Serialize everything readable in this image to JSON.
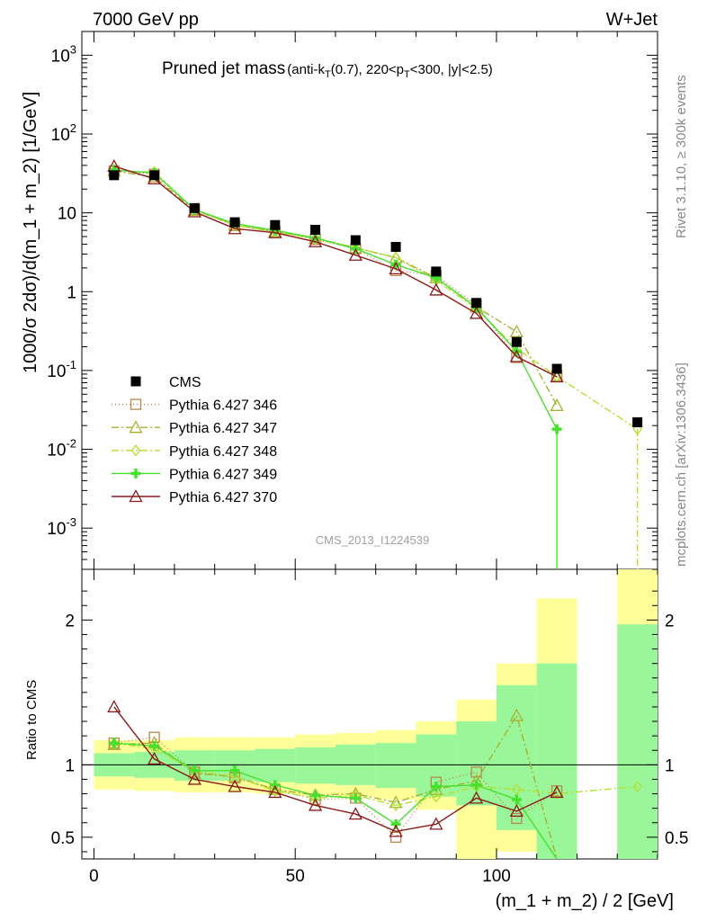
{
  "header": {
    "left": "7000 GeV pp",
    "right": "W+Jet"
  },
  "title": {
    "main": "Pruned jet mass",
    "sub": "(anti-k_T(0.7), 220<p_T<300, |y|<2.5)"
  },
  "side_labels": {
    "rivet": "Rivet 3.1.10, ≥ 300k events",
    "mcplots": "mcplots.cern.ch [arXiv:1306.3436]"
  },
  "watermark": "CMS_2013_I1224539",
  "chart_data": [
    {
      "type": "scatter",
      "panel": "main",
      "ylabel": "1000/σ 2dσ)/d(m_1 + m_2) [1/GeV]",
      "yscale": "log",
      "ylim": [
        0.0003,
        2000
      ],
      "xlim": [
        -3,
        140
      ],
      "yticks": [
        {
          "v": 0.001,
          "base": "10",
          "exp": "-3"
        },
        {
          "v": 0.01,
          "base": "10",
          "exp": "-2"
        },
        {
          "v": 0.1,
          "base": "10",
          "exp": "-1"
        },
        {
          "v": 1,
          "base": "1",
          "exp": ""
        },
        {
          "v": 10,
          "base": "10",
          "exp": ""
        },
        {
          "v": 100,
          "base": "10",
          "exp": "2"
        },
        {
          "v": 1000,
          "base": "10",
          "exp": "3"
        }
      ],
      "legend_position": "left-middle",
      "series": [
        {
          "name": "CMS",
          "color": "#000000",
          "marker": "square-filled",
          "dash": "none",
          "x": [
            5,
            15,
            25,
            35,
            45,
            55,
            65,
            75,
            85,
            95,
            105,
            115,
            135
          ],
          "y": [
            30,
            30,
            11.5,
            7.6,
            7.0,
            6.1,
            4.5,
            3.7,
            1.8,
            0.72,
            0.23,
            0.105,
            0.022
          ]
        },
        {
          "name": "Pythia 6.427 346",
          "color": "#b8874e",
          "marker": "square-open",
          "dash": "1,3",
          "x": [
            5,
            15,
            25,
            35,
            45,
            55,
            65,
            75,
            85,
            95,
            105,
            115
          ],
          "y": [
            34,
            31,
            11,
            6.9,
            5.8,
            4.6,
            3.5,
            1.85,
            1.6,
            0.68,
            0.146,
            0.086
          ]
        },
        {
          "name": "Pythia 6.427 347",
          "color": "#a8b032",
          "marker": "triangle-open",
          "dash": "8,3,2,3",
          "x": [
            5,
            15,
            25,
            35,
            45,
            55,
            65,
            75,
            85,
            95,
            105,
            115
          ],
          "y": [
            34,
            28.5,
            10.8,
            7.0,
            5.8,
            4.8,
            3.6,
            2.7,
            1.5,
            0.64,
            0.31,
            0.036
          ]
        },
        {
          "name": "Pythia 6.427 348",
          "color": "#b4e032",
          "marker": "diamond-open",
          "dash": "8,3,2,3",
          "x": [
            5,
            15,
            25,
            35,
            45,
            55,
            65,
            75,
            85,
            95,
            105,
            115,
            135
          ],
          "y": [
            34,
            33,
            11,
            7.0,
            5.7,
            4.7,
            3.6,
            2.7,
            1.4,
            0.61,
            0.19,
            0.084,
            0.018
          ]
        },
        {
          "name": "Pythia 6.427 349",
          "color": "#47e02e",
          "marker": "cross",
          "dash": "none",
          "x": [
            5,
            15,
            25,
            35,
            45,
            55,
            65,
            75,
            85,
            95,
            105,
            115
          ],
          "y": [
            35,
            32,
            11,
            7.3,
            6.0,
            4.8,
            3.5,
            2.2,
            1.5,
            0.63,
            0.175,
            0.018
          ]
        },
        {
          "name": "Pythia 6.427 370",
          "color": "#8b1a1a",
          "marker": "triangle-open",
          "dash": "none",
          "x": [
            5,
            15,
            25,
            35,
            45,
            55,
            65,
            75,
            85,
            95,
            105,
            115
          ],
          "y": [
            39,
            27,
            10.3,
            6.3,
            5.6,
            4.3,
            2.9,
            1.95,
            1.05,
            0.53,
            0.15,
            0.083
          ]
        }
      ]
    },
    {
      "type": "line",
      "panel": "ratio",
      "ylabel": "Ratio to CMS",
      "xlabel": "(m_1 + m_2) / 2 [GeV]",
      "ylim": [
        0.35,
        2.35
      ],
      "xlim": [
        -3,
        140
      ],
      "xticks": [
        0,
        50,
        100
      ],
      "yticks": [
        0.5,
        1,
        2
      ],
      "bands": {
        "edges": [
          0,
          10,
          20,
          30,
          40,
          50,
          60,
          70,
          80,
          90,
          100,
          110,
          120,
          130,
          140
        ],
        "yellow": [
          [
            0.83,
            1.17
          ],
          [
            0.82,
            1.17
          ],
          [
            0.81,
            1.19
          ],
          [
            0.81,
            1.19
          ],
          [
            0.8,
            1.19
          ],
          [
            0.79,
            1.21
          ],
          [
            0.78,
            1.22
          ],
          [
            0.76,
            1.24
          ],
          [
            0.69,
            1.3
          ],
          [
            0.35,
            1.45
          ],
          [
            0.4,
            1.7
          ],
          [
            0.35,
            2.15
          ],
          [
            null,
            null
          ],
          [
            0.35,
            2.35
          ]
        ],
        "green": [
          [
            0.92,
            1.08
          ],
          [
            0.91,
            1.09
          ],
          [
            0.89,
            1.1
          ],
          [
            0.89,
            1.1
          ],
          [
            0.88,
            1.11
          ],
          [
            0.87,
            1.12
          ],
          [
            0.86,
            1.14
          ],
          [
            0.84,
            1.15
          ],
          [
            0.78,
            1.21
          ],
          [
            0.72,
            1.3
          ],
          [
            0.55,
            1.55
          ],
          [
            0.35,
            1.7
          ],
          [
            null,
            null
          ],
          [
            0.35,
            1.97
          ]
        ]
      },
      "series": [
        {
          "name": "Pythia 6.427 346",
          "x": [
            5,
            15,
            25,
            35,
            45,
            55,
            65,
            75,
            85,
            95,
            105,
            115
          ],
          "y": [
            1.15,
            1.19,
            0.95,
            0.91,
            0.83,
            0.76,
            0.77,
            0.5,
            0.88,
            0.95,
            0.63,
            0.82
          ]
        },
        {
          "name": "Pythia 6.427 347",
          "x": [
            5,
            15,
            25,
            35,
            45,
            55,
            65,
            75,
            85,
            95,
            105,
            115
          ],
          "y": [
            1.14,
            1.15,
            0.94,
            0.92,
            0.83,
            0.79,
            0.8,
            0.74,
            0.83,
            0.89,
            1.34,
            0.35
          ]
        },
        {
          "name": "Pythia 6.427 348",
          "x": [
            5,
            15,
            25,
            35,
            45,
            55,
            65,
            75,
            85,
            95,
            105,
            115,
            135
          ],
          "y": [
            1.15,
            1.11,
            0.96,
            0.92,
            0.82,
            0.77,
            0.79,
            0.72,
            0.78,
            0.85,
            0.83,
            0.8,
            0.85
          ]
        },
        {
          "name": "Pythia 6.427 349",
          "x": [
            5,
            15,
            25,
            35,
            45,
            55,
            65,
            75,
            85,
            95,
            105,
            115
          ],
          "y": [
            1.15,
            1.13,
            0.96,
            0.96,
            0.86,
            0.79,
            0.77,
            0.59,
            0.85,
            0.86,
            0.76,
            0.35
          ]
        },
        {
          "name": "Pythia 6.427 370",
          "x": [
            5,
            15,
            25,
            35,
            45,
            55,
            65,
            75,
            85,
            95,
            105,
            115
          ],
          "y": [
            1.4,
            1.04,
            0.9,
            0.85,
            0.81,
            0.72,
            0.66,
            0.54,
            0.59,
            0.77,
            0.68,
            0.81
          ]
        }
      ]
    }
  ]
}
